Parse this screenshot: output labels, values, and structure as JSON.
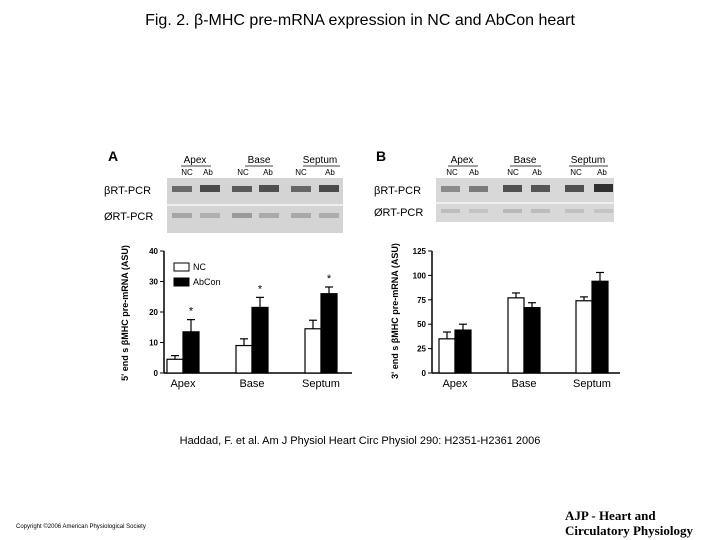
{
  "title": "Fig. 2. β-MHC pre-mRNA expression in NC and AbCon heart",
  "citation": "Haddad, F. et al. Am J Physiol Heart Circ Physiol 290: H2351-H2361 2006",
  "copyright": "Copyright ©2006 American Physiological Society",
  "journal": {
    "line1": "AJP - Heart and",
    "line2": "Circulatory Physiology"
  },
  "colors": {
    "nc": "#ffffff",
    "abcon": "#000000",
    "gel_bg": "#d4d4d4"
  },
  "panels": [
    {
      "letter": "A",
      "gel_groups": [
        "Apex",
        "Base",
        "Septum"
      ],
      "lane_labels": [
        "NC",
        "Ab"
      ],
      "gel_rows": [
        "βRT-PCR",
        "ØRT-PCR"
      ]
    },
    {
      "letter": "B",
      "gel_groups": [
        "Apex",
        "Base",
        "Septum"
      ],
      "lane_labels": [
        "NC",
        "Ab"
      ],
      "gel_rows": [
        "βRT-PCR",
        "ØRT-PCR"
      ]
    }
  ],
  "chart_data": [
    {
      "type": "bar",
      "panel": "A",
      "categories": [
        "Apex",
        "Base",
        "Septum"
      ],
      "series": [
        {
          "name": "NC",
          "values": [
            4.5,
            9,
            14.5
          ],
          "errors": [
            1.2,
            2.2,
            2.8
          ],
          "color": "#ffffff"
        },
        {
          "name": "AbCon",
          "values": [
            13.5,
            21.5,
            26
          ],
          "errors": [
            4,
            3.3,
            2.2
          ],
          "color": "#000000"
        }
      ],
      "significance": [
        "*",
        "*",
        "*"
      ],
      "ylabel": "5' end s βMHC pre-mRNA (ASU)",
      "ylim": [
        0,
        40
      ],
      "yticks": [
        0,
        10,
        20,
        30,
        40
      ],
      "legend": "top-left"
    },
    {
      "type": "bar",
      "panel": "B",
      "categories": [
        "Apex",
        "Base",
        "Septum"
      ],
      "series": [
        {
          "name": "NC",
          "values": [
            35,
            77,
            74
          ],
          "errors": [
            7,
            5,
            4
          ],
          "color": "#ffffff"
        },
        {
          "name": "AbCon",
          "values": [
            44,
            67,
            94
          ],
          "errors": [
            6,
            5,
            9
          ],
          "color": "#000000"
        }
      ],
      "ylabel": "3' end s βMHC pre-mRNA (ASU)",
      "ylim": [
        0,
        125
      ],
      "yticks": [
        0,
        25,
        50,
        75,
        100,
        125
      ]
    }
  ]
}
